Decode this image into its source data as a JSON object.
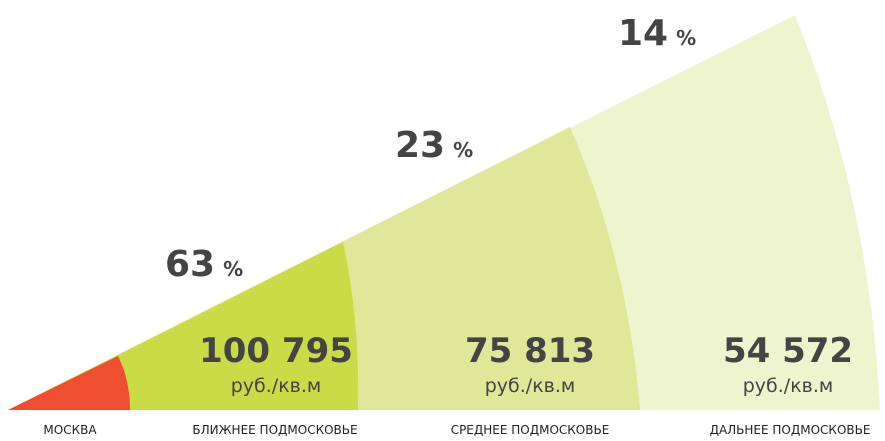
{
  "segments": [
    {
      "label": "МОСКВА"
    },
    {
      "label": "БЛИЖНЕЕ ПОДМОСКОВЬЕ",
      "share": 63,
      "percent_sign": "%",
      "price": "100 795",
      "unit": "руб./кв.м"
    },
    {
      "label": "СРЕДНЕЕ ПОДМОСКОВЬЕ",
      "share": 23,
      "percent_sign": "%",
      "price": "75 813",
      "unit": "руб./кв.м"
    },
    {
      "label": "ДАЛЬНЕЕ ПОДМОСКОВЬЕ",
      "share": 14,
      "percent_sign": "%",
      "price": "54 572",
      "unit": "руб./кв.м"
    }
  ]
}
